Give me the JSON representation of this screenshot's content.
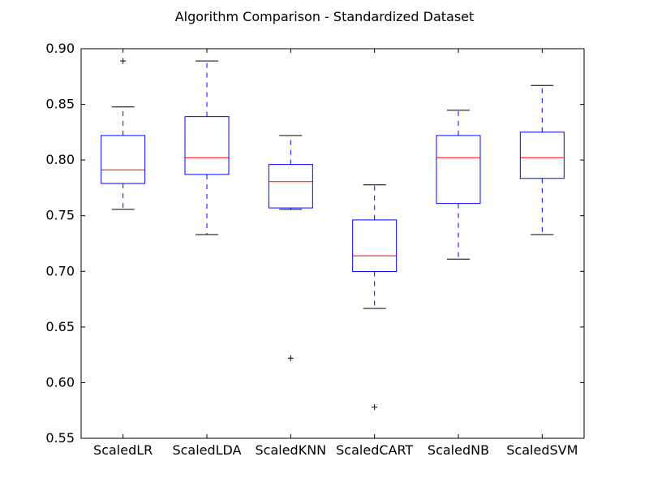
{
  "chart_data": {
    "type": "box",
    "title": "Algorithm Comparison - Standardized Dataset",
    "xlabel": "",
    "ylabel": "",
    "ylim": [
      0.55,
      0.9
    ],
    "yticks": [
      "0.55",
      "0.60",
      "0.65",
      "0.70",
      "0.75",
      "0.80",
      "0.85",
      "0.90"
    ],
    "grid": false,
    "categories": [
      "ScaledLR",
      "ScaledLDA",
      "ScaledKNN",
      "ScaledCART",
      "ScaledNB",
      "ScaledSVM"
    ],
    "boxes": [
      {
        "whisker_low": 0.7556,
        "q1": 0.7789,
        "median": 0.7912,
        "q3": 0.822,
        "whisker_high": 0.8477,
        "outliers": [
          0.889
        ]
      },
      {
        "whisker_low": 0.733,
        "q1": 0.787,
        "median": 0.8021,
        "q3": 0.839,
        "whisker_high": 0.889,
        "outliers": []
      },
      {
        "whisker_low": 0.7556,
        "q1": 0.757,
        "median": 0.7806,
        "q3": 0.796,
        "whisker_high": 0.822,
        "outliers": [
          0.622
        ]
      },
      {
        "whisker_low": 0.6667,
        "q1": 0.6998,
        "median": 0.714,
        "q3": 0.7462,
        "whisker_high": 0.7777,
        "outliers": [
          0.578
        ]
      },
      {
        "whisker_low": 0.711,
        "q1": 0.761,
        "median": 0.8021,
        "q3": 0.822,
        "whisker_high": 0.8447,
        "outliers": []
      },
      {
        "whisker_low": 0.733,
        "q1": 0.7835,
        "median": 0.8021,
        "q3": 0.825,
        "whisker_high": 0.867,
        "outliers": []
      }
    ],
    "colors": {
      "box": "#0000ff",
      "median": "#ff0000",
      "whisker": "#0000ff",
      "cap": "#000000",
      "outlier": "#000000",
      "axes": "#000000"
    }
  }
}
